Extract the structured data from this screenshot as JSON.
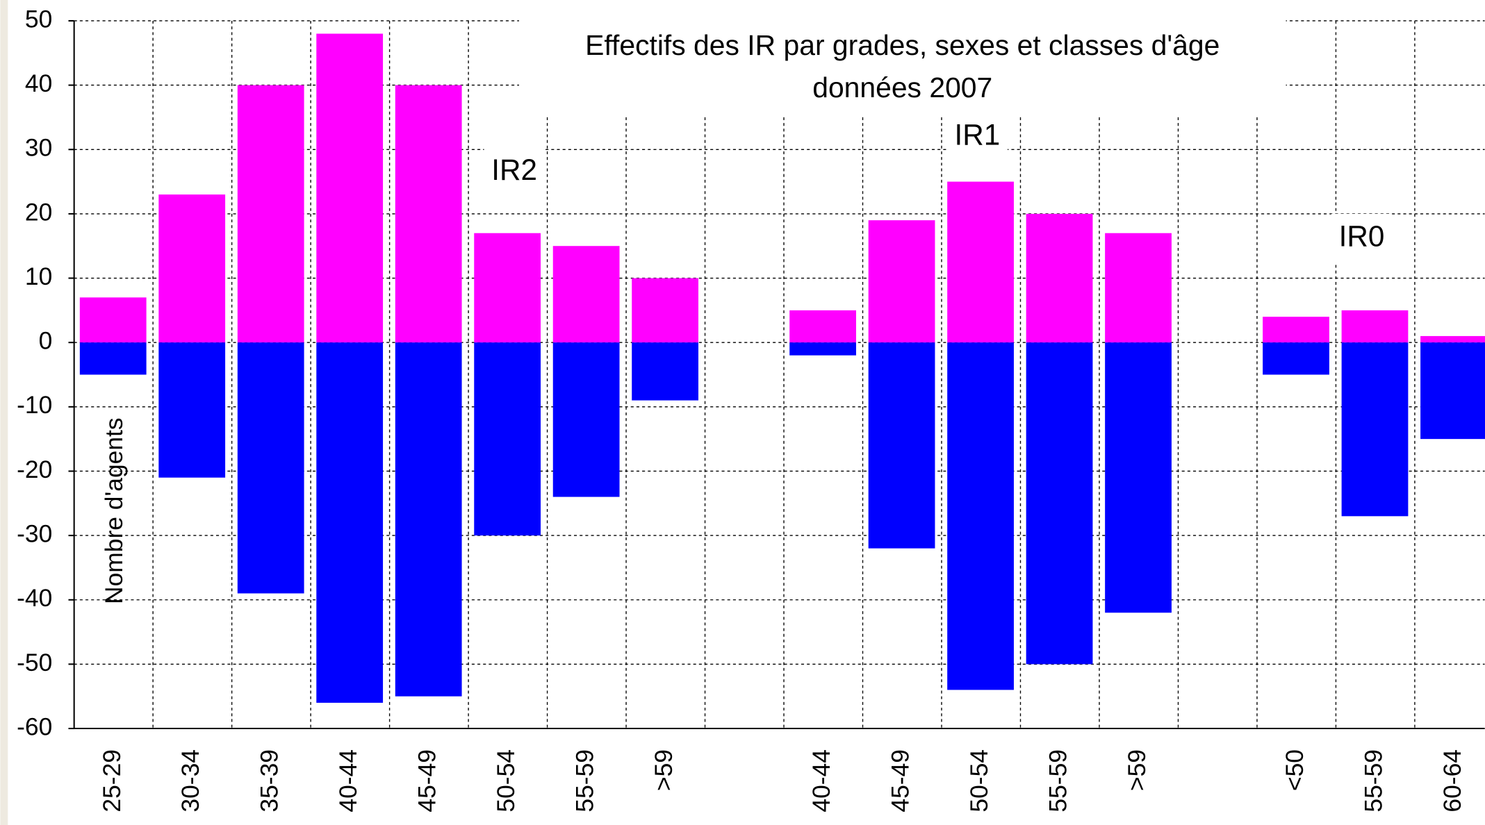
{
  "chart_data": {
    "type": "bar",
    "title": [
      "Effectifs des IR par grades, sexes et classes d'âge",
      "données 2007"
    ],
    "y_label": "Nombre d'agents",
    "annotations": [
      "IR2",
      "IR1",
      "IR0"
    ],
    "categories": [
      "25-29",
      "30-34",
      "35-39",
      "40-44",
      "45-49",
      "50-54",
      "55-59",
      ">59",
      null,
      "40-44",
      "45-49",
      "50-54",
      "55-59",
      ">59",
      null,
      "<50",
      "55-59",
      "60-64"
    ],
    "series": [
      {
        "color": "#ff00ff",
        "values": [
          7,
          23,
          40,
          48,
          40,
          17,
          15,
          10,
          null,
          5,
          19,
          25,
          20,
          17,
          null,
          4,
          5,
          1
        ]
      },
      {
        "color": "#0000ff",
        "values": [
          -5,
          -21,
          -39,
          -56,
          -55,
          -30,
          -24,
          -9,
          null,
          -2,
          -32,
          -54,
          -50,
          -42,
          null,
          -5,
          -27,
          -15
        ]
      }
    ],
    "ylim": [
      -60,
      50
    ],
    "yticks": [
      -60,
      -50,
      -40,
      -30,
      -20,
      -10,
      0,
      10,
      20,
      30,
      40,
      50
    ],
    "grid": true
  }
}
